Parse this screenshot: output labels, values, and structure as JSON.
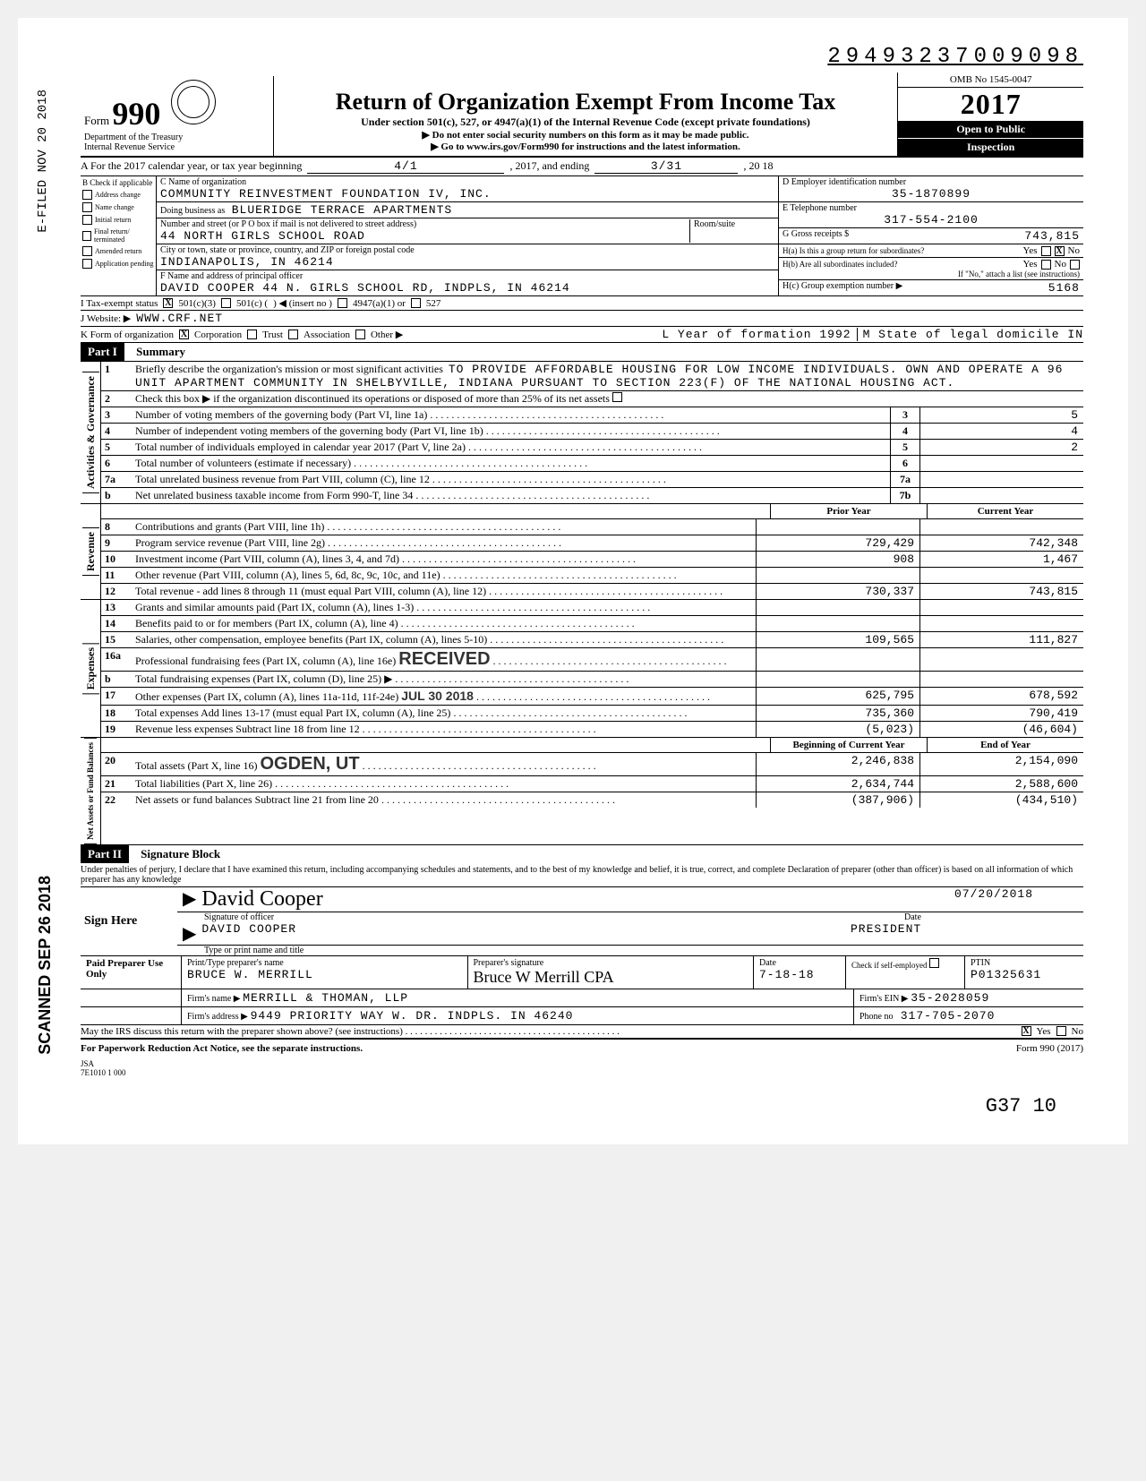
{
  "dln": "29493237009098",
  "formNo": "990",
  "title": "Return of Organization Exempt From Income Tax",
  "subtitle": "Under section 501(c), 527, or 4947(a)(1) of the Internal Revenue Code (except private foundations)",
  "warn1": "▶ Do not enter social security numbers on this form as it may be made public.",
  "warn2": "▶ Go to www.irs.gov/Form990 for instructions and the latest information.",
  "omb": "OMB No 1545-0047",
  "year": "2017",
  "openPublic1": "Open to Public",
  "openPublic2": "Inspection",
  "dept1": "Department of the Treasury",
  "dept2": "Internal Revenue Service",
  "vertical1": "E-FILED NOV 20 2018",
  "vertical2": "SCANNED SEP 26 2018",
  "rowA": {
    "label": "A  For the 2017 calendar year, or tax year beginning",
    "begin": "4/1",
    "mid": ", 2017, and ending",
    "end": "3/31",
    "tail": ", 20 18"
  },
  "B": {
    "header": "B Check if applicable",
    "items": [
      "Address change",
      "Name change",
      "Initial return",
      "Final return/ terminated",
      "Amended return",
      "Application pending"
    ]
  },
  "C": {
    "nameLabel": "C Name of organization",
    "name": "COMMUNITY REINVESTMENT FOUNDATION IV, INC.",
    "dbaLabel": "Doing business as",
    "dba": "BLUERIDGE TERRACE APARTMENTS",
    "streetLabel": "Number and street (or P O box if mail is not delivered to street address)",
    "roomLabel": "Room/suite",
    "street": "44 NORTH GIRLS SCHOOL ROAD",
    "cityLabel": "City or town, state or province, country, and ZIP or foreign postal code",
    "city": "INDIANAPOLIS, IN 46214",
    "officerLabel": "F Name and address of principal officer",
    "officer": "DAVID COOPER 44 N. GIRLS SCHOOL RD, INDPLS, IN 46214"
  },
  "D": {
    "einLabel": "D Employer identification number",
    "ein": "35-1870899",
    "phoneLabel": "E Telephone number",
    "phone": "317-554-2100",
    "grossLabel": "G Gross receipts $",
    "gross": "743,815",
    "Ha": "H(a) Is this a group return for subordinates?",
    "Hb": "H(b) Are all subordinates included?",
    "HbNote": "If \"No,\" attach a list (see instructions)",
    "Hc": "H(c) Group exemption number ▶",
    "HcVal": "5168"
  },
  "rowI": {
    "label": "I    Tax-exempt status",
    "c3": "501(c)(3)",
    "c": "501(c) (",
    "insert": ")  ◀  (insert no )",
    "a1": "4947(a)(1) or",
    "s527": "527"
  },
  "rowJ": {
    "label": "J    Website: ▶",
    "val": "WWW.CRF.NET"
  },
  "rowK": {
    "label": "K   Form of organization",
    "corp": "Corporation",
    "trust": "Trust",
    "assoc": "Association",
    "other": "Other ▶",
    "year": "L Year of formation 1992",
    "state": "M State of legal domicile  IN"
  },
  "part1": {
    "badge": "Part I",
    "title": "Summary"
  },
  "mission1": "Briefly describe the organization's mission or most significant activities",
  "missionText": "TO PROVIDE AFFORDABLE HOUSING FOR LOW INCOME INDIVIDUALS.  OWN AND OPERATE A 96 UNIT APARTMENT COMMUNITY IN SHELBYVILLE, INDIANA PURSUANT TO SECTION 223(F) OF THE NATIONAL HOUSING ACT.",
  "line2": "Check this box ▶        if the organization discontinued its operations or disposed of more than 25% of its net assets",
  "actgov": [
    {
      "n": "3",
      "d": "Number of voting members of the governing body (Part VI, line 1a)",
      "b": "3",
      "v": "5"
    },
    {
      "n": "4",
      "d": "Number of independent voting members of the governing body (Part VI, line 1b)",
      "b": "4",
      "v": "4"
    },
    {
      "n": "5",
      "d": "Total number of individuals employed in calendar year 2017 (Part V, line 2a)",
      "b": "5",
      "v": "2"
    },
    {
      "n": "6",
      "d": "Total number of volunteers (estimate if necessary)",
      "b": "6",
      "v": ""
    },
    {
      "n": "7a",
      "d": "Total unrelated business revenue from Part VIII, column (C), line 12",
      "b": "7a",
      "v": ""
    },
    {
      "n": "b",
      "d": "Net unrelated business taxable income from Form 990-T, line 34",
      "b": "7b",
      "v": ""
    }
  ],
  "twocolhead": {
    "prior": "Prior Year",
    "curr": "Current Year"
  },
  "revenue": [
    {
      "n": "8",
      "d": "Contributions and grants (Part VIII, line 1h)",
      "p": "",
      "c": ""
    },
    {
      "n": "9",
      "d": "Program service revenue (Part VIII, line 2g)",
      "p": "729,429",
      "c": "742,348"
    },
    {
      "n": "10",
      "d": "Investment income (Part VIII, column (A), lines 3, 4, and 7d)",
      "p": "908",
      "c": "1,467"
    },
    {
      "n": "11",
      "d": "Other revenue (Part VIII, column (A), lines 5, 6d, 8c, 9c, 10c, and 11e)",
      "p": "",
      "c": ""
    },
    {
      "n": "12",
      "d": "Total revenue - add lines 8 through 11 (must equal Part VIII, column (A), line 12)",
      "p": "730,337",
      "c": "743,815"
    }
  ],
  "expenses": [
    {
      "n": "13",
      "d": "Grants and similar amounts paid (Part IX, column (A), lines 1-3)",
      "p": "",
      "c": ""
    },
    {
      "n": "14",
      "d": "Benefits paid to or for members (Part IX, column (A), line 4)",
      "p": "",
      "c": ""
    },
    {
      "n": "15",
      "d": "Salaries, other compensation, employee benefits (Part IX, column (A), lines 5-10)",
      "p": "109,565",
      "c": "111,827"
    },
    {
      "n": "16a",
      "d": "Professional fundraising fees (Part IX, column (A), line 16e)",
      "p": "",
      "c": "",
      "stamp": "RECEIVED"
    },
    {
      "n": "b",
      "d": "Total fundraising expenses (Part IX, column (D), line 25) ▶",
      "p": "",
      "c": ""
    },
    {
      "n": "17",
      "d": "Other expenses (Part IX, column (A), lines 11a-11d, 11f-24e)",
      "p": "625,795",
      "c": "678,592",
      "stamp2": "JUL 30 2018"
    },
    {
      "n": "18",
      "d": "Total expenses Add lines 13-17 (must equal Part IX, column (A), line 25)",
      "p": "735,360",
      "c": "790,419"
    },
    {
      "n": "19",
      "d": "Revenue less expenses Subtract line 18 from line 12",
      "p": "(5,023)",
      "c": "(46,604)"
    }
  ],
  "nabhead": {
    "prior": "Beginning of Current Year",
    "curr": "End of Year"
  },
  "nab": [
    {
      "n": "20",
      "d": "Total assets (Part X, line 16)",
      "p": "2,246,838",
      "c": "2,154,090",
      "stamp": "OGDEN, UT"
    },
    {
      "n": "21",
      "d": "Total liabilities (Part X, line 26)",
      "p": "2,634,744",
      "c": "2,588,600"
    },
    {
      "n": "22",
      "d": "Net assets or fund balances Subtract line 21 from line 20",
      "p": "(387,906)",
      "c": "(434,510)"
    }
  ],
  "part2": {
    "badge": "Part II",
    "title": "Signature Block"
  },
  "perjury": "Under penalties of perjury, I declare that I have examined this return, including accompanying schedules and statements, and to the best of my knowledge and belief, it is true, correct, and complete Declaration of preparer (other than officer) is based on all information of which preparer has any knowledge",
  "sign": {
    "here": "Sign Here",
    "sigLine": "Signature of officer",
    "sigCursive": "David Cooper",
    "date": "07/20/2018",
    "dateLabel": "Date",
    "name": "DAVID COOPER",
    "title": "PRESIDENT",
    "typeLabel": "Type or print name and title"
  },
  "prep": {
    "label": "Paid Preparer Use Only",
    "col1": "Print/Type preparer's name",
    "col2": "Preparer's signature",
    "col3": "Date",
    "name": "BRUCE W. MERRILL",
    "sigCursive": "Bruce W Merrill CPA",
    "date": "7-18-18",
    "checkLabel": "Check       if self-employed",
    "ptinLabel": "PTIN",
    "ptin": "P01325631",
    "firmNameLabel": "Firm's name ▶",
    "firmName": "MERRILL & THOMAN, LLP",
    "firmEinLabel": "Firm's EIN ▶",
    "firmEin": "35-2028059",
    "firmAddrLabel": "Firm's address ▶",
    "firmAddr": "9449 PRIORITY WAY W. DR. INDPLS. IN 46240",
    "phoneLabel": "Phone no",
    "phone": "317-705-2070"
  },
  "discuss": "May the IRS discuss this return with the preparer shown above? (see instructions)",
  "paperwork": "For Paperwork Reduction Act Notice, see the separate instructions.",
  "formFoot": "Form 990 (2017)",
  "jsa": "JSA\n7E1010 1 000",
  "bottomHand": "G37    10",
  "strips": {
    "ag": "Activities & Governance",
    "rev": "Revenue",
    "exp": "Expenses",
    "nab": "Net Assets or\nFund Balances"
  }
}
